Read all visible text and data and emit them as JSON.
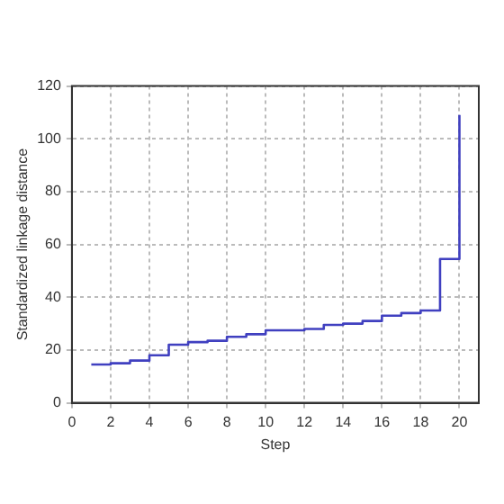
{
  "chart_data": {
    "type": "step",
    "xlabel": "Step",
    "ylabel": "Standardized linkage distance",
    "x": [
      1,
      2,
      3,
      4,
      5,
      6,
      7,
      8,
      9,
      10,
      11,
      12,
      13,
      14,
      15,
      16,
      17,
      18,
      19,
      20
    ],
    "series": [
      {
        "color": "#4040c0",
        "values": [
          14.5,
          15,
          16,
          18,
          22,
          23,
          23.5,
          25,
          26,
          27.5,
          27.5,
          28,
          29.5,
          30,
          31,
          33,
          34,
          35,
          54.5,
          109
        ]
      }
    ],
    "xlim": [
      0,
      21
    ],
    "xticks": [
      0,
      2,
      4,
      6,
      8,
      10,
      12,
      14,
      16,
      18,
      20
    ],
    "ylim": [
      0,
      120
    ],
    "yticks": [
      0,
      20,
      40,
      60,
      80,
      100,
      120
    ],
    "grid": true,
    "legend": false,
    "marker": "none",
    "line_style": "solid"
  }
}
